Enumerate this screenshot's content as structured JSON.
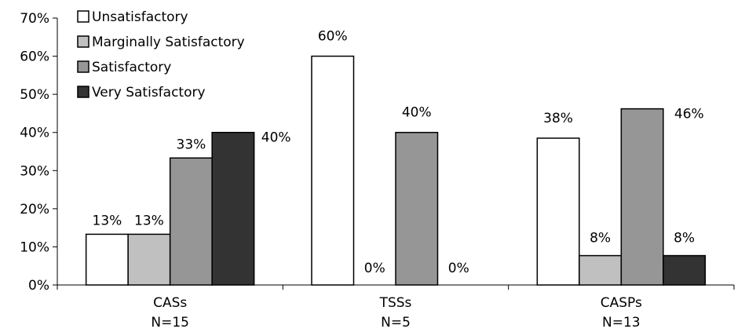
{
  "chart_data": {
    "type": "bar",
    "categories": [
      {
        "name": "CASs",
        "n": "N=15"
      },
      {
        "name": "TSSs",
        "n": "N=5"
      },
      {
        "name": "CASPs",
        "n": "N=13"
      }
    ],
    "series": [
      {
        "name": "Unsatisfactory",
        "color": "#ffffff",
        "values": [
          13.3,
          60,
          38.5
        ],
        "labels": [
          "13%",
          "60%",
          "38%"
        ]
      },
      {
        "name": "Marginally Satisfactory",
        "color": "#c0c0c0",
        "values": [
          13.3,
          0,
          7.7
        ],
        "labels": [
          "13%",
          "0%",
          "8%"
        ]
      },
      {
        "name": "Satisfactory",
        "color": "#969696",
        "values": [
          33.3,
          40,
          46.2
        ],
        "labels": [
          "33%",
          "40%",
          "46%"
        ]
      },
      {
        "name": "Very Satisfactory",
        "color": "#333333",
        "values": [
          40,
          0,
          7.7
        ],
        "labels": [
          "40%",
          "0%",
          "8%"
        ]
      }
    ],
    "ylim": [
      0,
      70
    ],
    "yticks": [
      "0%",
      "10%",
      "20%",
      "30%",
      "40%",
      "50%",
      "60%",
      "70%"
    ],
    "legend_position": "top-left",
    "grid": false
  }
}
